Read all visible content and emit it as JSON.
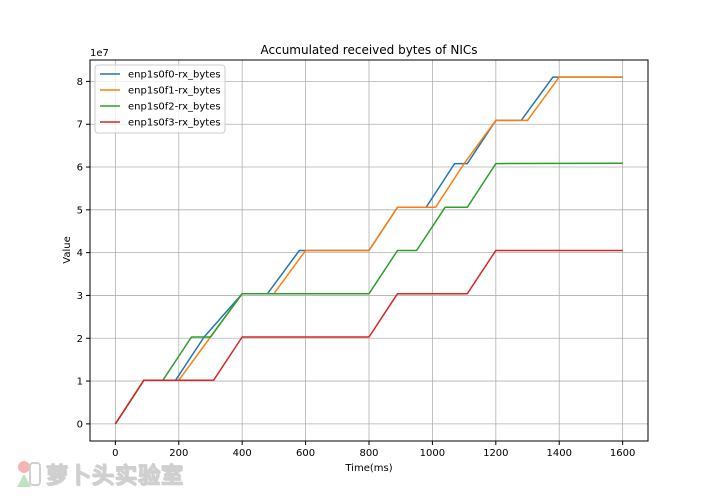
{
  "chart_data": {
    "type": "line",
    "title": "Accumulated received bytes of NICs",
    "xlabel": "Time(ms)",
    "ylabel": "Value",
    "y_scale_label": "1e7",
    "xlim": [
      -80,
      1680
    ],
    "ylim": [
      -0.4,
      8.5
    ],
    "x_ticks": [
      0,
      200,
      400,
      600,
      800,
      1000,
      1200,
      1400,
      1600
    ],
    "y_ticks": [
      0,
      1,
      2,
      3,
      4,
      5,
      6,
      7,
      8
    ],
    "grid": true,
    "legend_position": "top-left",
    "series": [
      {
        "name": "enp1s0f0-rx_bytes",
        "color": "#1f77b4",
        "x": [
          0,
          90,
          190,
          280,
          400,
          480,
          580,
          800,
          890,
          980,
          1070,
          1110,
          1200,
          1280,
          1380,
          1600
        ],
        "y": [
          0,
          1.02,
          1.02,
          2.03,
          3.04,
          3.04,
          4.05,
          4.05,
          5.06,
          5.06,
          6.08,
          6.08,
          7.09,
          7.09,
          8.1,
          8.1
        ]
      },
      {
        "name": "enp1s0f1-rx_bytes",
        "color": "#ff7f0e",
        "x": [
          0,
          90,
          200,
          300,
          400,
          500,
          600,
          800,
          890,
          1010,
          1100,
          1200,
          1300,
          1400,
          1600
        ],
        "y": [
          0,
          1.02,
          1.02,
          2.03,
          3.04,
          3.04,
          4.05,
          4.05,
          5.06,
          5.06,
          6.08,
          7.09,
          7.09,
          8.1,
          8.1
        ]
      },
      {
        "name": "enp1s0f2-rx_bytes",
        "color": "#2ca02c",
        "x": [
          0,
          90,
          150,
          240,
          300,
          400,
          800,
          890,
          950,
          1040,
          1110,
          1200,
          1600
        ],
        "y": [
          0,
          1.02,
          1.02,
          2.03,
          2.03,
          3.04,
          3.04,
          4.05,
          4.05,
          5.06,
          5.06,
          6.08,
          6.09
        ]
      },
      {
        "name": "enp1s0f3-rx_bytes",
        "color": "#d62728",
        "x": [
          0,
          90,
          310,
          400,
          800,
          890,
          1110,
          1200,
          1600
        ],
        "y": [
          0,
          1.02,
          1.02,
          2.03,
          2.03,
          3.04,
          3.04,
          4.05,
          4.05
        ]
      }
    ]
  },
  "watermark": {
    "text": "萝卜头实验室"
  }
}
